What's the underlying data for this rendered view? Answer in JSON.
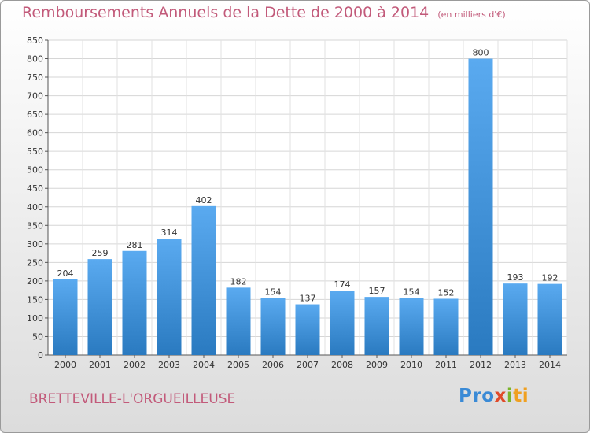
{
  "header": {
    "title": "Remboursements Annuels de la Dette de 2000 à 2014",
    "unit": "(en milliers d'€)"
  },
  "footer": {
    "commune": "BRETTEVILLE-L'ORGUEILLEUSE",
    "logo_parts": [
      "Pro",
      "x",
      "i",
      "ti"
    ]
  },
  "colors": {
    "title": "#c25a7a",
    "bar_top": "#5aaaf0",
    "bar_bottom": "#2a7ac0"
  },
  "chart_data": {
    "type": "bar",
    "title": "Remboursements Annuels de la Dette de 2000 à 2014",
    "ylabel": "",
    "xlabel": "",
    "categories": [
      "2000",
      "2001",
      "2002",
      "2003",
      "2004",
      "2005",
      "2006",
      "2007",
      "2008",
      "2009",
      "2010",
      "2011",
      "2012",
      "2013",
      "2014"
    ],
    "values": [
      204,
      259,
      281,
      314,
      402,
      182,
      154,
      137,
      174,
      157,
      154,
      152,
      800,
      193,
      192
    ],
    "value_labels": [
      "204",
      "259",
      "281",
      "314",
      "402",
      "182",
      "154",
      "137",
      "174",
      "157",
      "154",
      "152",
      "800",
      "193",
      "192"
    ],
    "ylim": [
      0,
      850
    ],
    "yticks": [
      0,
      50,
      100,
      150,
      200,
      250,
      300,
      350,
      400,
      450,
      500,
      550,
      600,
      650,
      700,
      750,
      800,
      850
    ],
    "grid": true,
    "legend": "none"
  }
}
